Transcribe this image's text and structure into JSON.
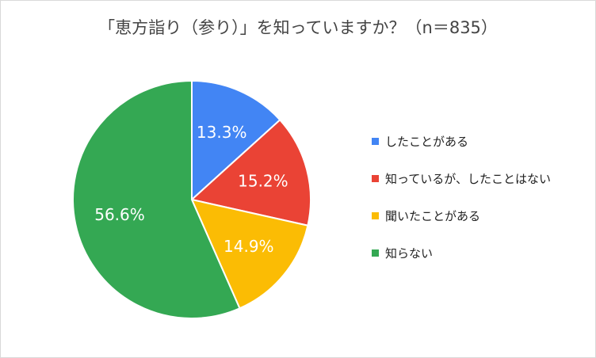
{
  "chart_data": {
    "type": "pie",
    "title": "「恵方詣り（参り）」を知っていますか？（n＝835）",
    "categories": [
      "したことがある",
      "知っているが、したことはない",
      "聞いたことがある",
      "知らない"
    ],
    "values": [
      13.3,
      15.2,
      14.9,
      56.6
    ],
    "data_labels": [
      "13.3%",
      "15.2%",
      "14.9%",
      "56.6%"
    ],
    "colors": [
      "#4285F4",
      "#EA4335",
      "#FBBC04",
      "#34A853"
    ],
    "legend_position": "right",
    "start_angle": "12 o'clock",
    "direction": "clockwise"
  }
}
